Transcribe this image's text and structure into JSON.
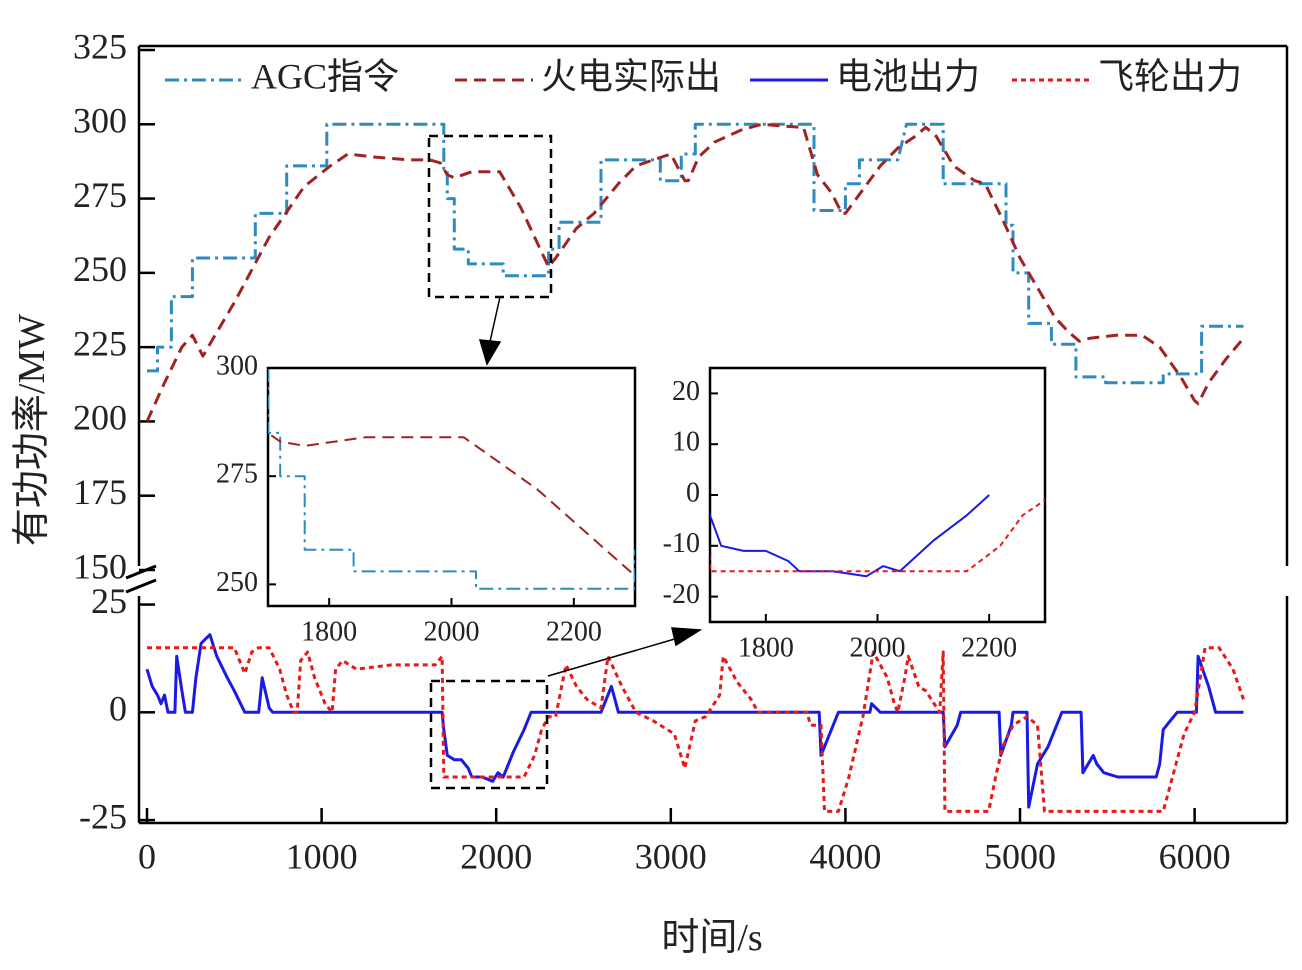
{
  "chart_data": {
    "type": "line",
    "xlabel": "时间/s",
    "ylabel": "有功功率/MW",
    "x_ticks": [
      "0",
      "1000",
      "2000",
      "3000",
      "4000",
      "5000",
      "6000"
    ],
    "xlim": [
      0,
      6300
    ],
    "y_axis_broken": true,
    "upper_ylim": [
      150,
      325
    ],
    "upper_y_ticks": [
      "150",
      "175",
      "200",
      "225",
      "250",
      "275",
      "300",
      "325"
    ],
    "lower_ylim": [
      -28,
      30
    ],
    "lower_y_ticks": [
      "-25",
      "0",
      "25"
    ],
    "legend_position": "top",
    "colors": {
      "agc": "#2e8bc0",
      "thermal": "#a02323",
      "battery": "#1a1ae6",
      "flywheel": "#e61a1a"
    },
    "series": [
      {
        "name": "AGC指令",
        "key": "agc",
        "style": "dashdot",
        "panel": "upper",
        "points": [
          [
            0,
            217
          ],
          [
            60,
            217
          ],
          [
            60,
            225
          ],
          [
            140,
            225
          ],
          [
            140,
            242
          ],
          [
            260,
            242
          ],
          [
            260,
            255
          ],
          [
            500,
            255
          ],
          [
            500,
            255
          ],
          [
            620,
            255
          ],
          [
            620,
            270
          ],
          [
            800,
            270
          ],
          [
            800,
            286
          ],
          [
            1000,
            286
          ],
          [
            1000,
            286
          ],
          [
            1030,
            286
          ],
          [
            1030,
            300
          ],
          [
            1600,
            300
          ],
          [
            1600,
            300
          ],
          [
            1640,
            300
          ],
          [
            1640,
            300
          ],
          [
            1700,
            300
          ],
          [
            1700,
            285
          ],
          [
            1720,
            285
          ],
          [
            1720,
            275
          ],
          [
            1760,
            275
          ],
          [
            1760,
            258
          ],
          [
            1840,
            258
          ],
          [
            1840,
            253
          ],
          [
            2000,
            253
          ],
          [
            2040,
            253
          ],
          [
            2040,
            249
          ],
          [
            2300,
            249
          ],
          [
            2300,
            258
          ],
          [
            2360,
            258
          ],
          [
            2360,
            267
          ],
          [
            2600,
            267
          ],
          [
            2600,
            288
          ],
          [
            2940,
            288
          ],
          [
            2940,
            281
          ],
          [
            3060,
            281
          ],
          [
            3060,
            290
          ],
          [
            3140,
            290
          ],
          [
            3140,
            300
          ],
          [
            3820,
            300
          ],
          [
            3820,
            271
          ],
          [
            3960,
            271
          ],
          [
            4000,
            271
          ],
          [
            4000,
            280
          ],
          [
            4080,
            280
          ],
          [
            4080,
            288
          ],
          [
            4300,
            288
          ],
          [
            4350,
            300
          ],
          [
            4560,
            300
          ],
          [
            4560,
            280
          ],
          [
            4920,
            280
          ],
          [
            4920,
            266
          ],
          [
            4960,
            266
          ],
          [
            4960,
            250
          ],
          [
            5050,
            250
          ],
          [
            5050,
            233
          ],
          [
            5180,
            233
          ],
          [
            5180,
            226
          ],
          [
            5320,
            226
          ],
          [
            5320,
            215
          ],
          [
            5490,
            215
          ],
          [
            5490,
            213
          ],
          [
            5820,
            213
          ],
          [
            5820,
            216
          ],
          [
            5960,
            216
          ],
          [
            6040,
            216
          ],
          [
            6040,
            232
          ],
          [
            6280,
            232
          ]
        ]
      },
      {
        "name": "火电实际出",
        "key": "thermal",
        "style": "dashed",
        "panel": "upper",
        "points": [
          [
            0,
            200
          ],
          [
            100,
            213
          ],
          [
            200,
            225
          ],
          [
            260,
            229
          ],
          [
            320,
            222
          ],
          [
            400,
            230
          ],
          [
            500,
            240
          ],
          [
            700,
            262
          ],
          [
            900,
            279
          ],
          [
            1050,
            286
          ],
          [
            1150,
            290
          ],
          [
            1300,
            289
          ],
          [
            1500,
            288
          ],
          [
            1620,
            288
          ],
          [
            1680,
            287
          ],
          [
            1720,
            283
          ],
          [
            1760,
            282
          ],
          [
            1860,
            284
          ],
          [
            1980,
            284
          ],
          [
            2020,
            284
          ],
          [
            2140,
            272
          ],
          [
            2260,
            257
          ],
          [
            2300,
            252
          ],
          [
            2340,
            255
          ],
          [
            2460,
            265
          ],
          [
            2560,
            270
          ],
          [
            2700,
            280
          ],
          [
            2800,
            286
          ],
          [
            2900,
            288
          ],
          [
            3000,
            290
          ],
          [
            3080,
            281
          ],
          [
            3100,
            281
          ],
          [
            3160,
            289
          ],
          [
            3250,
            294
          ],
          [
            3400,
            298
          ],
          [
            3520,
            300
          ],
          [
            3740,
            299
          ],
          [
            3760,
            299
          ],
          [
            3840,
            283
          ],
          [
            3920,
            277
          ],
          [
            3980,
            270
          ],
          [
            4000,
            270
          ],
          [
            4100,
            278
          ],
          [
            4200,
            286
          ],
          [
            4300,
            292
          ],
          [
            4400,
            296
          ],
          [
            4460,
            299
          ],
          [
            4520,
            296
          ],
          [
            4620,
            286
          ],
          [
            4740,
            281
          ],
          [
            4800,
            280
          ],
          [
            4900,
            268
          ],
          [
            5000,
            255
          ],
          [
            5100,
            245
          ],
          [
            5200,
            235
          ],
          [
            5280,
            230
          ],
          [
            5340,
            227
          ],
          [
            5400,
            228
          ],
          [
            5550,
            229
          ],
          [
            5700,
            229
          ],
          [
            5800,
            225
          ],
          [
            5920,
            215
          ],
          [
            6000,
            207
          ],
          [
            6020,
            206
          ],
          [
            6080,
            213
          ],
          [
            6180,
            221
          ],
          [
            6280,
            228
          ]
        ]
      },
      {
        "name": "电池出力",
        "key": "battery",
        "style": "solid",
        "panel": "lower",
        "points": [
          [
            0,
            10
          ],
          [
            30,
            6
          ],
          [
            60,
            4
          ],
          [
            80,
            2
          ],
          [
            100,
            4
          ],
          [
            120,
            0
          ],
          [
            140,
            0
          ],
          [
            160,
            0
          ],
          [
            170,
            13
          ],
          [
            200,
            5
          ],
          [
            220,
            0
          ],
          [
            260,
            0
          ],
          [
            280,
            8
          ],
          [
            310,
            16
          ],
          [
            360,
            18
          ],
          [
            400,
            13
          ],
          [
            460,
            8
          ],
          [
            500,
            5
          ],
          [
            560,
            0
          ],
          [
            640,
            0
          ],
          [
            660,
            8
          ],
          [
            700,
            1
          ],
          [
            720,
            0
          ],
          [
            1600,
            0
          ],
          [
            1690,
            0
          ],
          [
            1700,
            -4
          ],
          [
            1720,
            -10
          ],
          [
            1760,
            -11
          ],
          [
            1800,
            -11
          ],
          [
            1840,
            -13
          ],
          [
            1860,
            -15
          ],
          [
            1920,
            -15
          ],
          [
            1980,
            -16
          ],
          [
            2010,
            -14
          ],
          [
            2040,
            -15
          ],
          [
            2100,
            -9
          ],
          [
            2160,
            -4
          ],
          [
            2200,
            0
          ],
          [
            2600,
            0
          ],
          [
            2660,
            6
          ],
          [
            2700,
            0
          ],
          [
            3850,
            0
          ],
          [
            3860,
            -10
          ],
          [
            3940,
            -2
          ],
          [
            3960,
            0
          ],
          [
            4140,
            0
          ],
          [
            4150,
            2
          ],
          [
            4200,
            0
          ],
          [
            4560,
            0
          ],
          [
            4570,
            -8
          ],
          [
            4640,
            -3
          ],
          [
            4660,
            0
          ],
          [
            4880,
            0
          ],
          [
            4890,
            -10
          ],
          [
            4950,
            -3
          ],
          [
            4960,
            0
          ],
          [
            4980,
            0
          ],
          [
            5040,
            0
          ],
          [
            5050,
            -22
          ],
          [
            5100,
            -12
          ],
          [
            5160,
            -8
          ],
          [
            5200,
            -4
          ],
          [
            5240,
            0
          ],
          [
            5350,
            0
          ],
          [
            5360,
            -14
          ],
          [
            5420,
            -10
          ],
          [
            5440,
            -12
          ],
          [
            5480,
            -14
          ],
          [
            5560,
            -15
          ],
          [
            5700,
            -15
          ],
          [
            5780,
            -15
          ],
          [
            5800,
            -12
          ],
          [
            5820,
            -4
          ],
          [
            5860,
            -2
          ],
          [
            5900,
            0
          ],
          [
            6010,
            0
          ],
          [
            6020,
            13
          ],
          [
            6080,
            6
          ],
          [
            6120,
            0
          ],
          [
            6280,
            0
          ]
        ]
      },
      {
        "name": "飞轮出力",
        "key": "flywheel",
        "style": "dotted",
        "panel": "lower",
        "points": [
          [
            0,
            15
          ],
          [
            500,
            15
          ],
          [
            560,
            9
          ],
          [
            600,
            14
          ],
          [
            640,
            15
          ],
          [
            700,
            15
          ],
          [
            760,
            10
          ],
          [
            800,
            4
          ],
          [
            840,
            0
          ],
          [
            860,
            0
          ],
          [
            880,
            12
          ],
          [
            920,
            14
          ],
          [
            960,
            8
          ],
          [
            1020,
            2
          ],
          [
            1060,
            0
          ],
          [
            1080,
            10
          ],
          [
            1120,
            12
          ],
          [
            1200,
            10
          ],
          [
            1400,
            11
          ],
          [
            1650,
            11
          ],
          [
            1690,
            13
          ],
          [
            1700,
            -15
          ],
          [
            2160,
            -15
          ],
          [
            2220,
            -10
          ],
          [
            2260,
            -4
          ],
          [
            2300,
            -1
          ],
          [
            2340,
            -1
          ],
          [
            2400,
            11
          ],
          [
            2460,
            6
          ],
          [
            2520,
            3
          ],
          [
            2600,
            1
          ],
          [
            2640,
            13
          ],
          [
            2720,
            6
          ],
          [
            2800,
            0
          ],
          [
            2900,
            -2
          ],
          [
            3020,
            -5
          ],
          [
            3080,
            -13
          ],
          [
            3140,
            -2
          ],
          [
            3200,
            -1
          ],
          [
            3280,
            4
          ],
          [
            3300,
            13
          ],
          [
            3380,
            7
          ],
          [
            3460,
            3
          ],
          [
            3500,
            0
          ],
          [
            3780,
            0
          ],
          [
            3800,
            -3
          ],
          [
            3860,
            -3
          ],
          [
            3880,
            -23
          ],
          [
            3960,
            -23
          ],
          [
            4020,
            -15
          ],
          [
            4100,
            -1
          ],
          [
            4160,
            14
          ],
          [
            4240,
            8
          ],
          [
            4280,
            2
          ],
          [
            4300,
            0
          ],
          [
            4340,
            8
          ],
          [
            4360,
            13
          ],
          [
            4420,
            6
          ],
          [
            4460,
            5
          ],
          [
            4540,
            0
          ],
          [
            4560,
            14
          ],
          [
            4570,
            -23
          ],
          [
            4820,
            -23
          ],
          [
            4860,
            -15
          ],
          [
            4900,
            -8
          ],
          [
            4960,
            -3
          ],
          [
            5040,
            -1
          ],
          [
            5100,
            -3
          ],
          [
            5140,
            -23
          ],
          [
            5600,
            -23
          ],
          [
            5820,
            -23
          ],
          [
            5940,
            -5
          ],
          [
            6000,
            0
          ],
          [
            6060,
            15
          ],
          [
            6140,
            15
          ],
          [
            6220,
            10
          ],
          [
            6280,
            3
          ]
        ]
      }
    ],
    "insets": [
      {
        "id": "upper-zoom",
        "xlim": [
          1700,
          2300
        ],
        "ylim": [
          245,
          300
        ],
        "x_ticks": [
          "1800",
          "2000",
          "2200"
        ],
        "y_ticks": [
          "250",
          "275",
          "300"
        ],
        "series_keys": [
          "agc",
          "thermal"
        ]
      },
      {
        "id": "lower-zoom",
        "xlim": [
          1700,
          2300
        ],
        "ylim": [
          -25,
          25
        ],
        "x_ticks": [
          "1800",
          "2000",
          "2200"
        ],
        "y_ticks": [
          "-20",
          "-10",
          "0",
          "10",
          "20"
        ],
        "series_keys": [
          "battery",
          "flywheel"
        ]
      }
    ]
  }
}
